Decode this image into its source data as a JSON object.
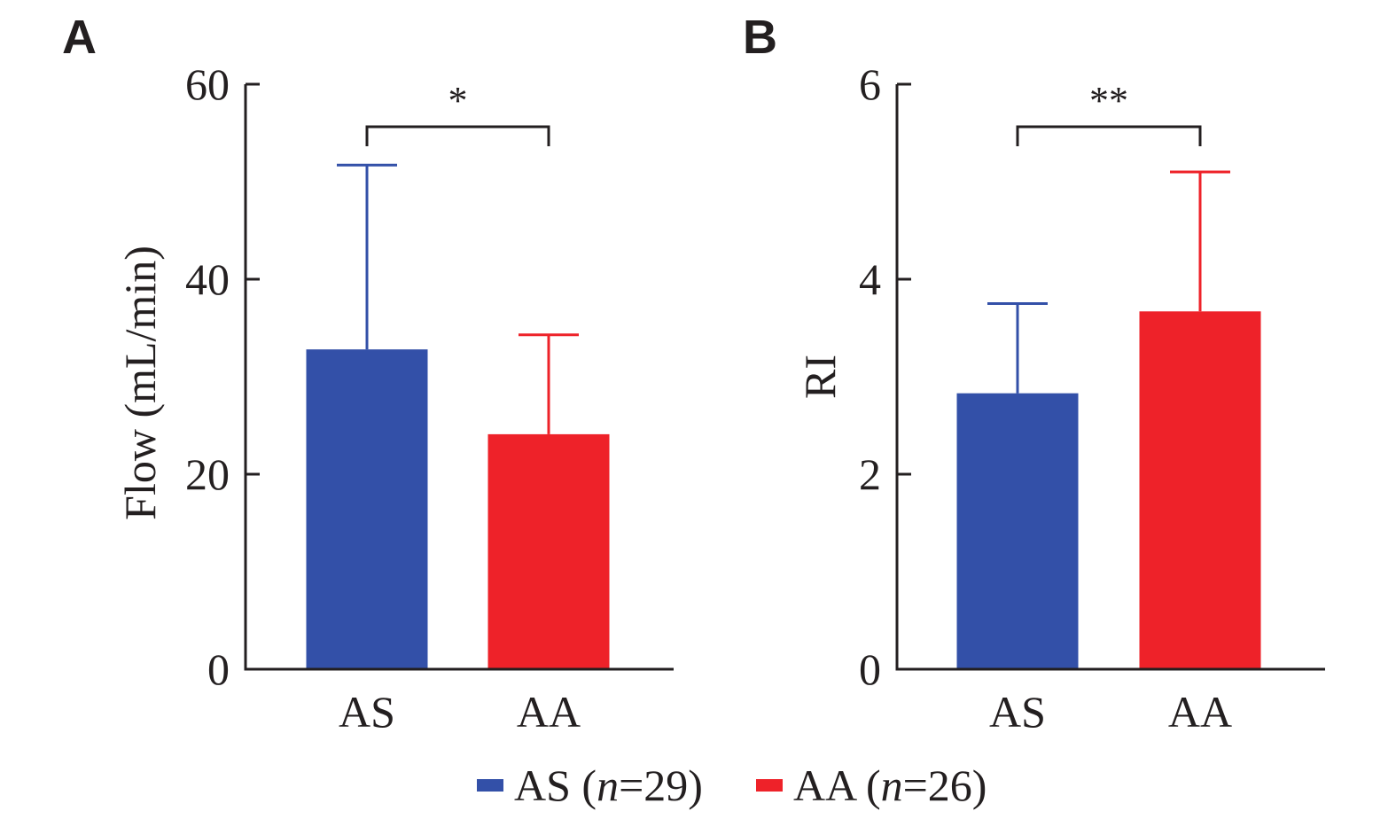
{
  "chart_data": [
    {
      "panel": "A",
      "type": "bar",
      "title": "",
      "xlabel": "",
      "ylabel": "Flow (mL/min)",
      "ylim": [
        0,
        60
      ],
      "yticks": [
        "0",
        "20",
        "40",
        "60"
      ],
      "ytick_values": [
        0,
        20,
        40,
        60
      ],
      "categories": [
        "AS",
        "AA"
      ],
      "values": [
        32.8,
        24.1
      ],
      "error_upper": [
        51.7,
        34.3
      ],
      "colors": [
        "#3350a8",
        "#ee2229"
      ],
      "significance": {
        "label": "*",
        "between": [
          "AS",
          "AA"
        ]
      },
      "grid": false
    },
    {
      "panel": "B",
      "type": "bar",
      "title": "",
      "xlabel": "",
      "ylabel": "RI",
      "ylim": [
        0,
        6
      ],
      "yticks": [
        "0",
        "2",
        "4",
        "6"
      ],
      "ytick_values": [
        0,
        2,
        4,
        6
      ],
      "categories": [
        "AS",
        "AA"
      ],
      "values": [
        2.83,
        3.67
      ],
      "error_upper": [
        3.75,
        5.1
      ],
      "colors": [
        "#3350a8",
        "#ee2229"
      ],
      "significance": {
        "label": "**",
        "between": [
          "AS",
          "AA"
        ]
      },
      "grid": false
    }
  ],
  "legend": {
    "placement": "bottom-center",
    "items": [
      {
        "group": "AS",
        "n_prefix": "n",
        "n_value": "=29",
        "color": "#3350a8"
      },
      {
        "group": "AA",
        "n_prefix": "n",
        "n_value": "=26",
        "color": "#ee2229"
      }
    ]
  }
}
